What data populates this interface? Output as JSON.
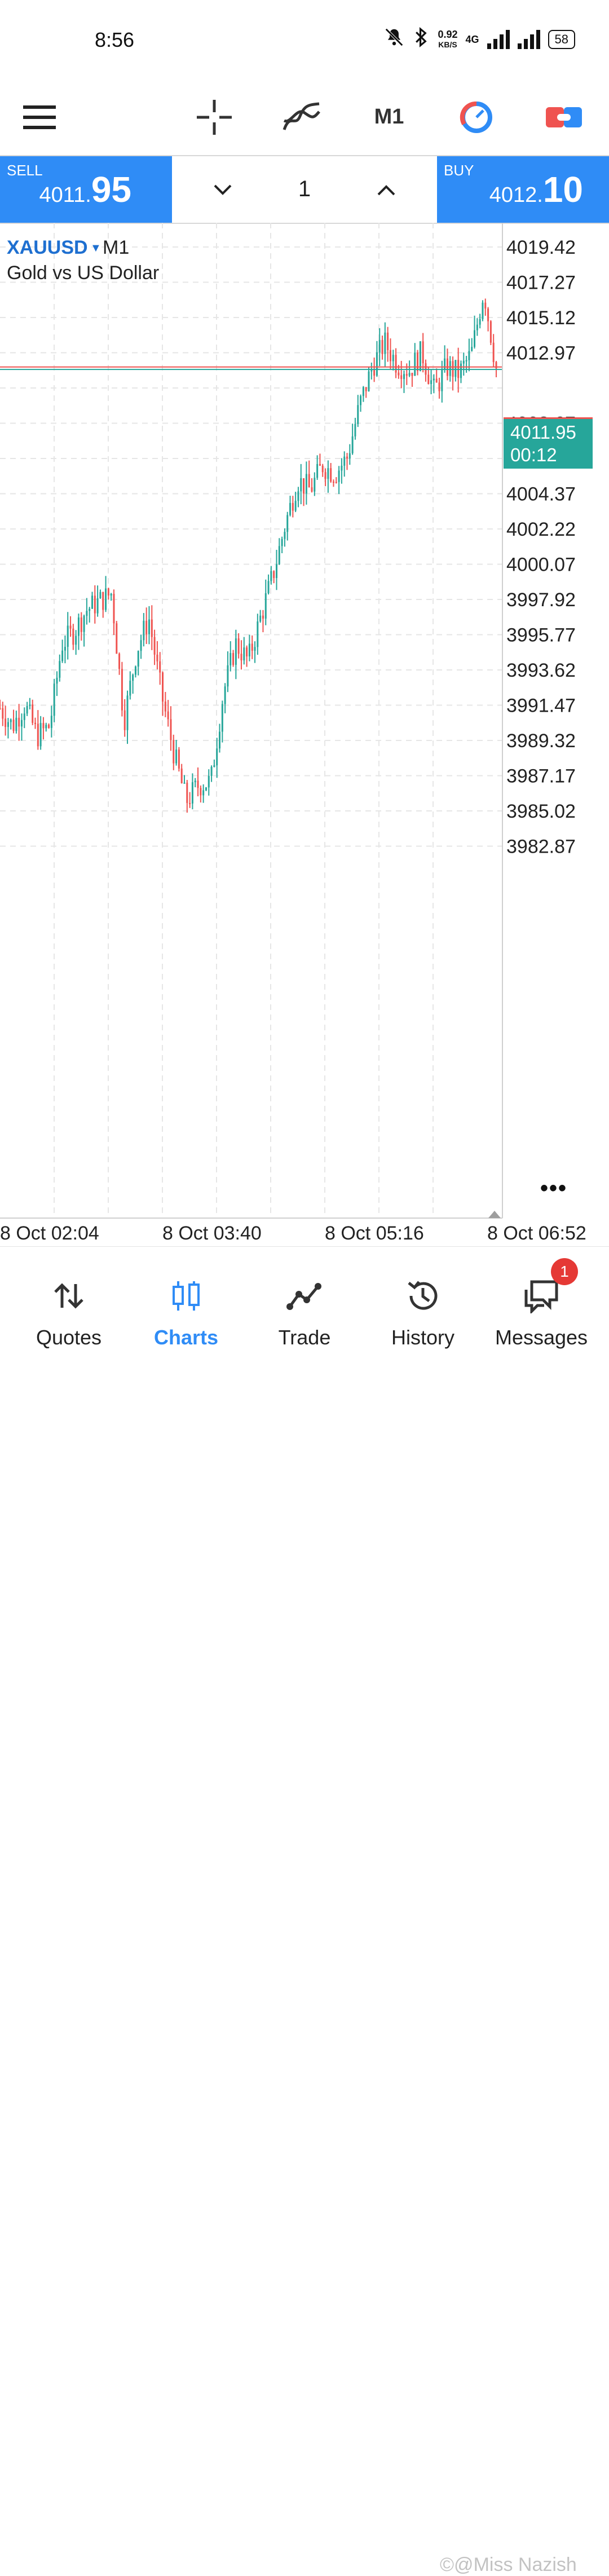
{
  "status_bar": {
    "time": "8:56",
    "net_speed_value": "0.92",
    "net_speed_unit": "KB/S",
    "network_type": "4G",
    "battery": "58"
  },
  "toolbar": {
    "timeframe": "M1"
  },
  "trade": {
    "sell_label": "SELL",
    "sell_price_small": "4011.",
    "sell_price_big": "95",
    "buy_label": "BUY",
    "buy_price_small": "4012.",
    "buy_price_big": "10",
    "volume": "1"
  },
  "chart": {
    "symbol": "XAUUSD",
    "timeframe": "M1",
    "description": "Gold vs US Dollar",
    "current_price": "4011.95",
    "countdown": "00:12",
    "bid_line_color": "#26a69a",
    "ask_line_color": "#ef5350"
  },
  "chart_data": {
    "type": "line",
    "y_tick_labels": [
      "4019.42",
      "4017.27",
      "4015.12",
      "4012.97",
      "4008.67",
      "4006.52",
      "4004.37",
      "4002.22",
      "4000.07",
      "3997.92",
      "3995.77",
      "3993.62",
      "3991.47",
      "3989.32",
      "3987.17",
      "3985.02",
      "3982.87"
    ],
    "x_tick_labels": [
      "8 Oct 02:04",
      "8 Oct 03:40",
      "8 Oct 05:16",
      "8 Oct 06:52"
    ],
    "ylim": [
      3982.87,
      4019.42
    ],
    "grid": true,
    "bid": 4011.95,
    "ask": 4012.1,
    "series": [
      {
        "x": [
          "01:42",
          "01:50",
          "01:58",
          "02:04",
          "02:12",
          "02:22",
          "02:32",
          "02:42",
          "02:52",
          "02:58",
          "03:04",
          "03:10",
          "03:16",
          "03:22",
          "03:30",
          "03:38",
          "03:44",
          "03:50",
          "03:58",
          "04:06",
          "04:14",
          "04:24",
          "04:32",
          "04:40",
          "04:48",
          "04:54",
          "05:00",
          "05:06",
          "05:12",
          "05:18",
          "05:24",
          "05:30",
          "05:36",
          "05:42",
          "05:48",
          "05:54",
          "06:00",
          "06:06",
          "06:12",
          "06:18",
          "06:22"
        ],
        "values": [
          3991.3,
          3990.2,
          3991.5,
          3989.6,
          3990.2,
          3995.2,
          3996.0,
          3997.3,
          3997.8,
          3998.3,
          3990.5,
          3994.8,
          3996.8,
          3992.2,
          3988.6,
          3985.6,
          3986.6,
          3986.8,
          3992.2,
          3995.2,
          3994.2,
          3996.8,
          3999.4,
          4002.5,
          4005.2,
          4004.6,
          4006.1,
          4005.6,
          4006.6,
          4009.8,
          4012.1,
          4013.6,
          4012.3,
          4011.9,
          4013.0,
          4010.6,
          4012.1,
          4011.7,
          4012.9,
          4016.8,
          4012.0
        ]
      }
    ]
  },
  "bottom_nav": {
    "items": [
      {
        "label": "Quotes"
      },
      {
        "label": "Charts"
      },
      {
        "label": "Trade"
      },
      {
        "label": "History"
      },
      {
        "label": "Messages",
        "badge": "1"
      }
    ]
  },
  "watermark": "©@Miss Nazish"
}
